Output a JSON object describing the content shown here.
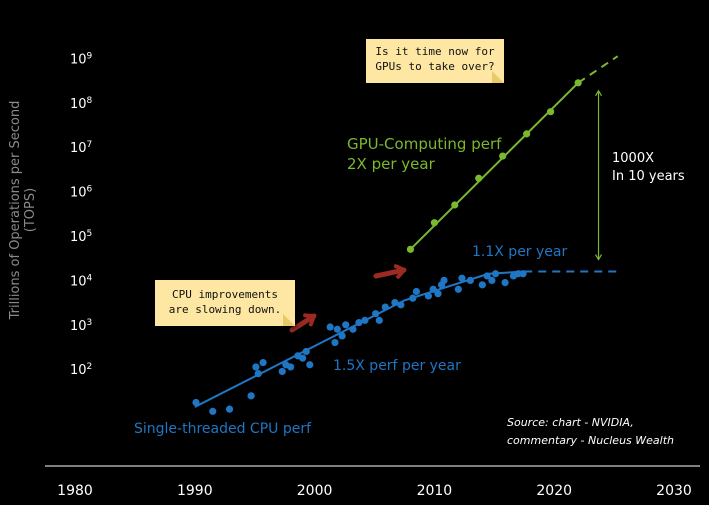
{
  "chart_data": {
    "type": "scatter",
    "title": "",
    "xlabel": "",
    "ylabel": "Trillions of Operations per Second (TOPS)",
    "y_scale": "log",
    "xlim": [
      1980,
      2030
    ],
    "ylim_exponent": [
      0,
      9
    ],
    "x_ticks": [
      "1980",
      "1990",
      "2000",
      "2010",
      "2020",
      "2030"
    ],
    "y_ticks": [
      {
        "base": "10",
        "exp": "2"
      },
      {
        "base": "10",
        "exp": "3"
      },
      {
        "base": "10",
        "exp": "4"
      },
      {
        "base": "10",
        "exp": "5"
      },
      {
        "base": "10",
        "exp": "6"
      },
      {
        "base": "10",
        "exp": "7"
      },
      {
        "base": "10",
        "exp": "8"
      },
      {
        "base": "10",
        "exp": "9"
      }
    ],
    "series": [
      {
        "name": "Single-threaded CPU perf",
        "color": "#1f76c4",
        "x": [
          1990.1,
          1991.5,
          1992.9,
          1994.7,
          1995.1,
          1995.3,
          1995.7,
          1997.3,
          1997.6,
          1998.0,
          1998.6,
          1999.0,
          1999.3,
          1999.6,
          2001.3,
          2001.7,
          2001.9,
          2002.3,
          2002.6,
          2003.2,
          2003.7,
          2004.2,
          2005.1,
          2005.4,
          2005.9,
          2006.7,
          2007.2,
          2008.2,
          2008.5,
          2009.5,
          2009.9,
          2010.3,
          2010.6,
          2010.8,
          2012.0,
          2012.3,
          2013.0,
          2014.0,
          2014.4,
          2014.8,
          2015.1,
          2015.9,
          2016.6,
          2017.0,
          2017.4
        ],
        "y": [
          1.25,
          1.05,
          1.1,
          1.4,
          2.05,
          1.9,
          2.15,
          1.95,
          2.1,
          2.05,
          2.3,
          2.25,
          2.4,
          2.1,
          2.95,
          2.6,
          2.9,
          2.75,
          3.0,
          2.9,
          3.05,
          3.1,
          3.25,
          3.1,
          3.4,
          3.5,
          3.45,
          3.6,
          3.75,
          3.65,
          3.8,
          3.7,
          3.9,
          4.0,
          3.8,
          4.05,
          4.0,
          3.9,
          4.1,
          4.0,
          4.15,
          3.95,
          4.1,
          4.15,
          4.15
        ]
      },
      {
        "name": "GPU-Computing perf",
        "color": "#7ab82e",
        "x": [
          2008,
          2010,
          2011.7,
          2013.7,
          2015.7,
          2017.7,
          2019.7,
          2022
        ],
        "y": [
          4.7,
          5.3,
          5.7,
          6.3,
          6.8,
          7.3,
          7.8,
          8.45
        ]
      }
    ],
    "annotations": {
      "gpu_label": "GPU-Computing perf",
      "gpu_rate": "2X per year",
      "cpu_rate_early": "1.5X perf per year",
      "cpu_rate_late": "1.1X per year",
      "cpu_label": "Single-threaded CPU perf",
      "gap_label_1": "1000X",
      "gap_label_2": "In 10 years",
      "note_gpu_1": "Is it time now for",
      "note_gpu_2": "GPUs to take over?",
      "note_cpu_1": "CPU improvements",
      "note_cpu_2": "are slowing down.",
      "source_1": "Source: chart - NVIDIA,",
      "source_2": "commentary - Nucleus Wealth"
    },
    "colors": {
      "gpu": "#7ab82e",
      "cpu": "#1f76c4",
      "arrow": "#9a2a22",
      "note": "#fde7a2"
    }
  }
}
